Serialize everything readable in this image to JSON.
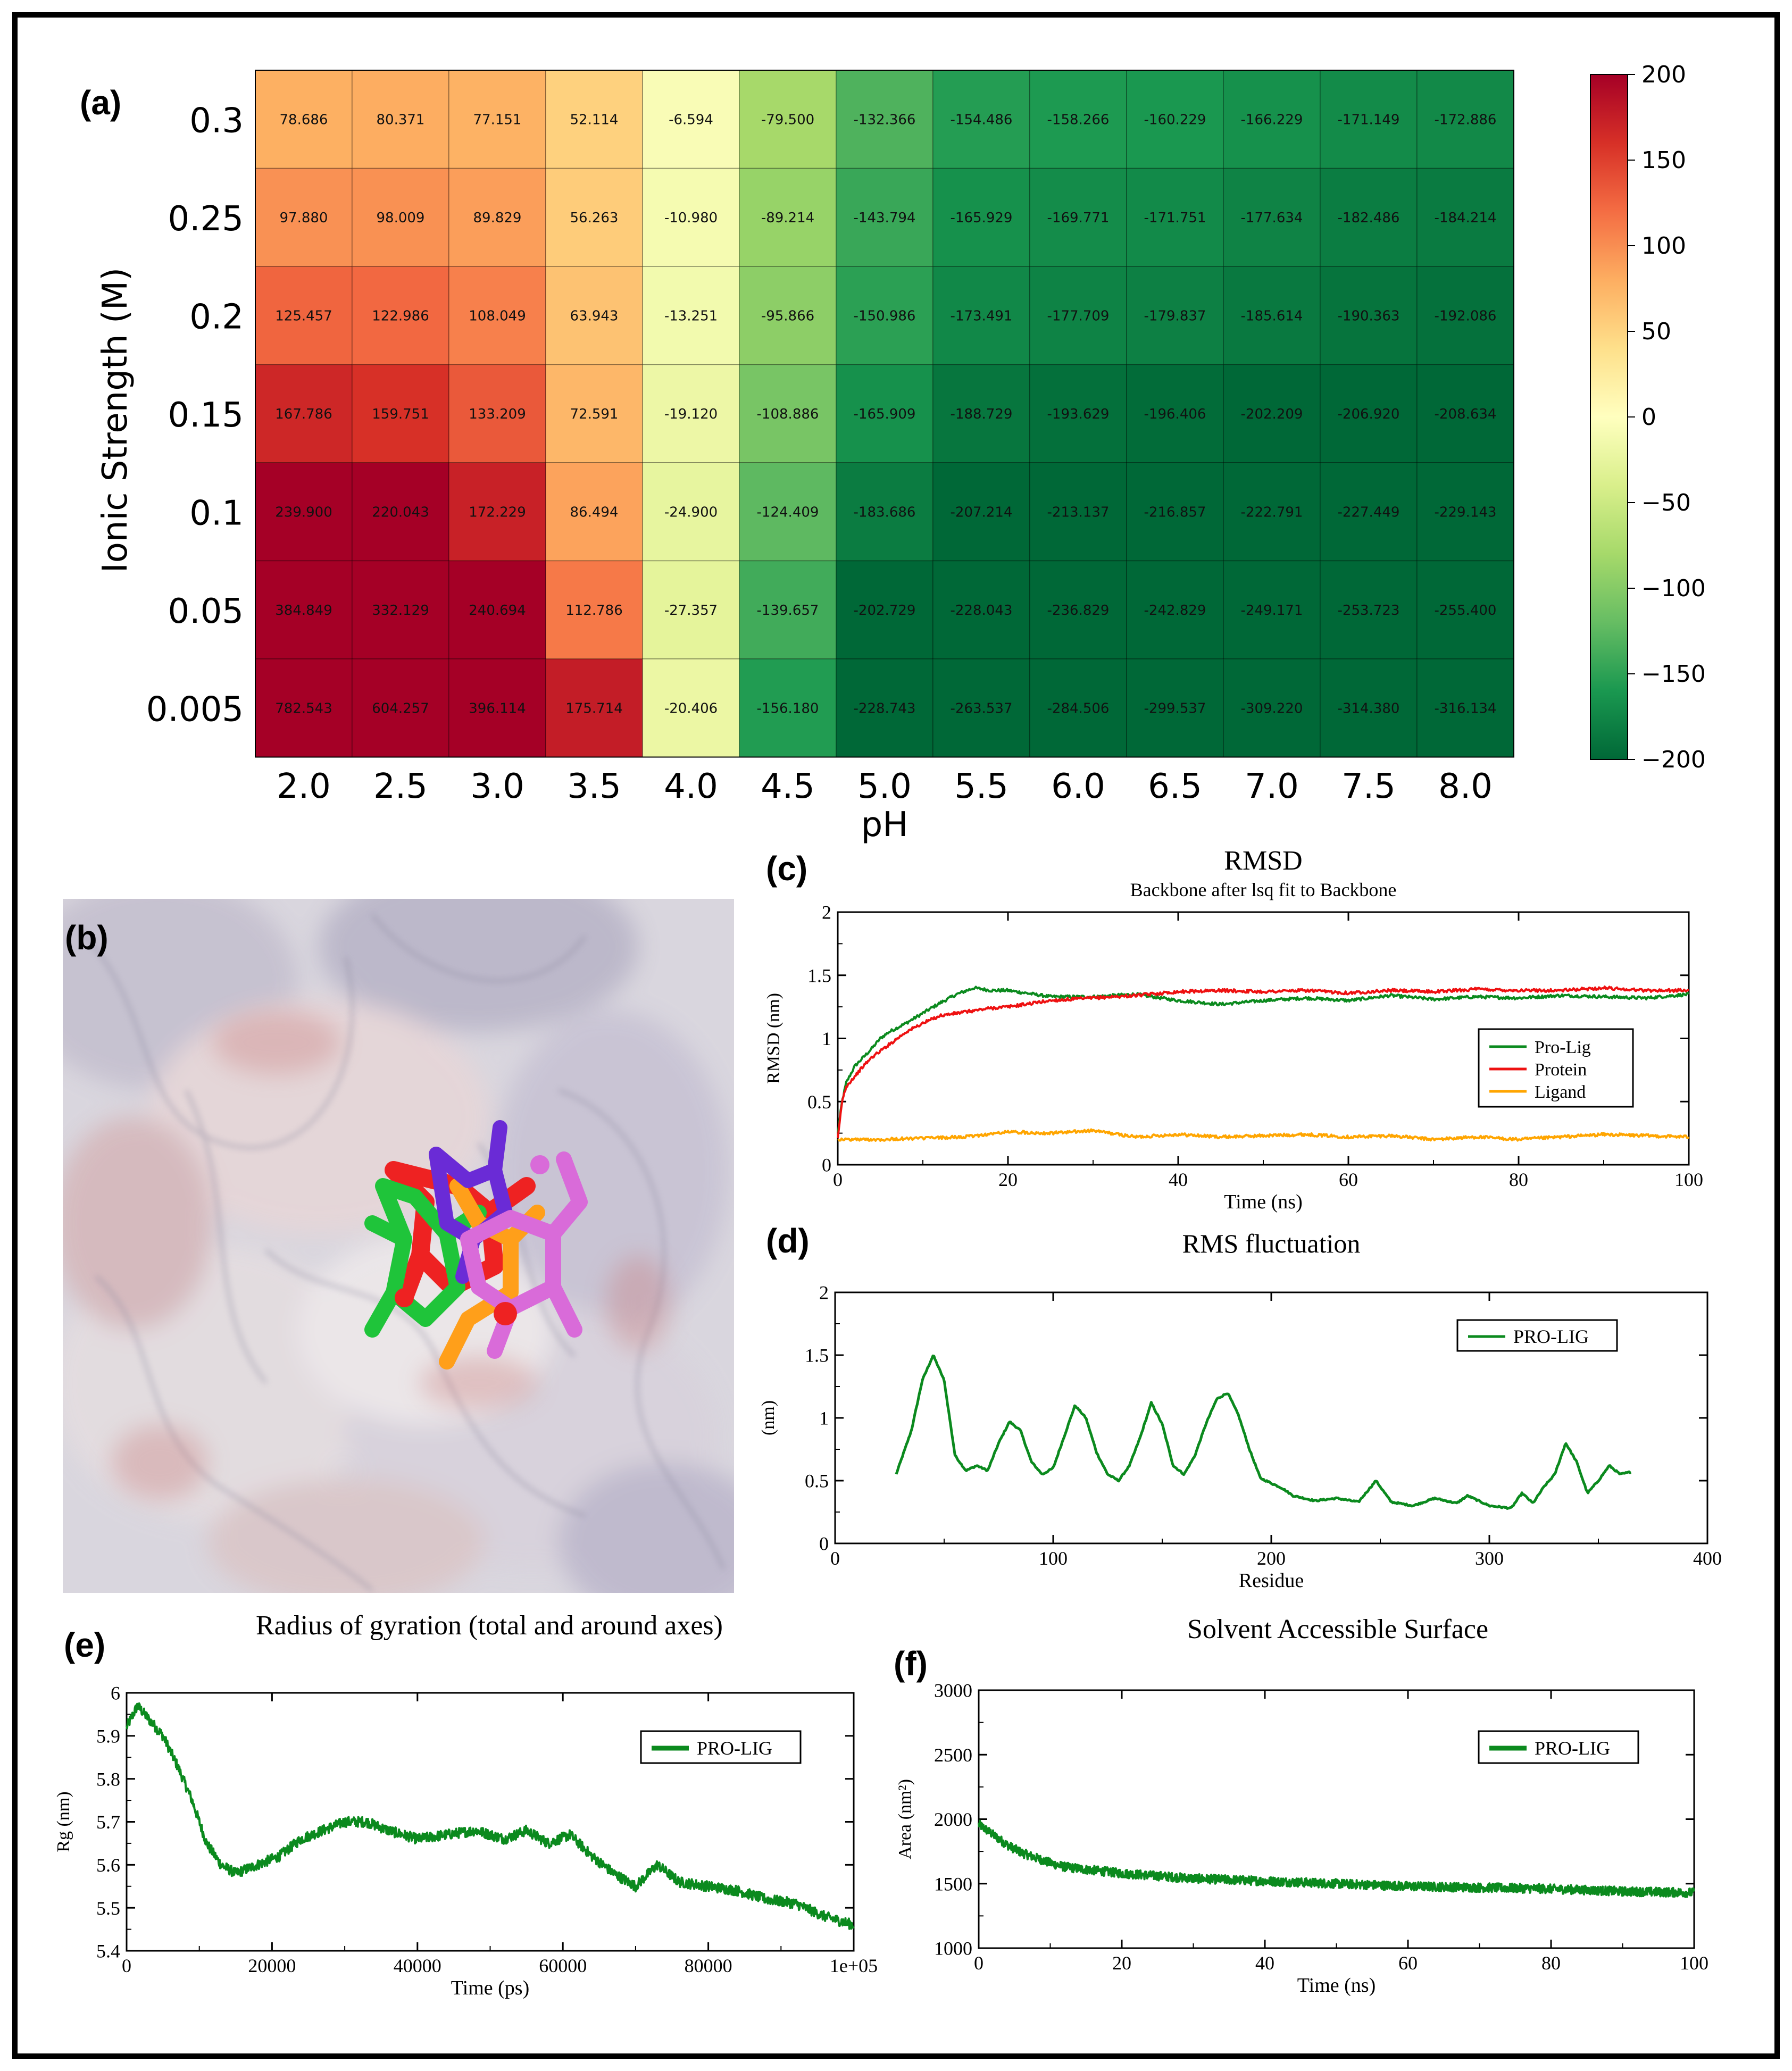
{
  "panel_labels": {
    "a": "(a)",
    "b": "(b)",
    "c": "(c)",
    "d": "(d)",
    "e": "(e)",
    "f": "(f)"
  },
  "chart_data": [
    {
      "id": "a",
      "type": "heatmap",
      "title": "",
      "xlabel": "pH",
      "ylabel": "Ionic Strength (M)",
      "x_categories": [
        "2.0",
        "2.5",
        "3.0",
        "3.5",
        "4.0",
        "4.5",
        "5.0",
        "5.5",
        "6.0",
        "6.5",
        "7.0",
        "7.5",
        "8.0"
      ],
      "y_categories": [
        "0.3",
        "0.25",
        "0.2",
        "0.15",
        "0.1",
        "0.05",
        "0.005"
      ],
      "values": [
        [
          "78.686",
          "80.371",
          "77.151",
          "52.114",
          "-6.594",
          "-79.500",
          "-132.366",
          "-154.486",
          "-158.266",
          "-160.229",
          "-166.229",
          "-171.149",
          "-172.886"
        ],
        [
          "97.880",
          "98.009",
          "89.829",
          "56.263",
          "-10.980",
          "-89.214",
          "-143.794",
          "-165.929",
          "-169.771",
          "-171.751",
          "-177.634",
          "-182.486",
          "-184.214"
        ],
        [
          "125.457",
          "122.986",
          "108.049",
          "63.943",
          "-13.251",
          "-95.866",
          "-150.986",
          "-173.491",
          "-177.709",
          "-179.837",
          "-185.614",
          "-190.363",
          "-192.086"
        ],
        [
          "167.786",
          "159.751",
          "133.209",
          "72.591",
          "-19.120",
          "-108.886",
          "-165.909",
          "-188.729",
          "-193.629",
          "-196.406",
          "-202.209",
          "-206.920",
          "-208.634"
        ],
        [
          "239.900",
          "220.043",
          "172.229",
          "86.494",
          "-24.900",
          "-124.409",
          "-183.686",
          "-207.214",
          "-213.137",
          "-216.857",
          "-222.791",
          "-227.449",
          "-229.143"
        ],
        [
          "384.849",
          "332.129",
          "240.694",
          "112.786",
          "-27.357",
          "-139.657",
          "-202.729",
          "-228.043",
          "-236.829",
          "-242.829",
          "-249.171",
          "-253.723",
          "-255.400"
        ],
        [
          "782.543",
          "604.257",
          "396.114",
          "175.714",
          "-20.406",
          "-156.180",
          "-228.743",
          "-263.537",
          "-284.506",
          "-299.537",
          "-309.220",
          "-314.380",
          "-316.134"
        ]
      ],
      "colorbar": {
        "range": [
          -200,
          200
        ],
        "ticks": [
          "200",
          "150",
          "100",
          "50",
          "0",
          "−50",
          "−100",
          "−150",
          "−200"
        ],
        "tick_values": [
          200,
          150,
          100,
          50,
          0,
          -50,
          -100,
          -150,
          -200
        ],
        "colors": [
          "#006837",
          "#1a9850",
          "#66bd63",
          "#a6d96a",
          "#d9ef8b",
          "#ffffbf",
          "#fee08b",
          "#fdae61",
          "#f46d43",
          "#d73027",
          "#a50026"
        ]
      }
    },
    {
      "id": "c",
      "type": "line",
      "title": "RMSD",
      "subtitle": "Backbone after lsq fit to Backbone",
      "xlabel": "Time (ns)",
      "ylabel": "RMSD (nm)",
      "xlim": [
        0,
        100
      ],
      "ylim": [
        0,
        2
      ],
      "xticks": [
        "0",
        "20",
        "40",
        "60",
        "80",
        "100"
      ],
      "yticks": [
        "0",
        "0.5",
        "1",
        "1.5",
        "2"
      ],
      "legend": "right",
      "series": [
        {
          "name": "Pro-Lig",
          "color": "#0b8a1e",
          "x": [
            0,
            0.5,
            1,
            2,
            3,
            4,
            5,
            6,
            8,
            10,
            12,
            14,
            16,
            18,
            20,
            22,
            25,
            30,
            35,
            40,
            45,
            50,
            55,
            60,
            65,
            70,
            75,
            80,
            85,
            90,
            95,
            100
          ],
          "y": [
            0.25,
            0.5,
            0.65,
            0.78,
            0.85,
            0.92,
            1.0,
            1.05,
            1.12,
            1.2,
            1.28,
            1.35,
            1.4,
            1.38,
            1.38,
            1.36,
            1.33,
            1.33,
            1.35,
            1.3,
            1.27,
            1.3,
            1.32,
            1.3,
            1.34,
            1.31,
            1.33,
            1.32,
            1.34,
            1.33,
            1.32,
            1.35
          ]
        },
        {
          "name": "Protein",
          "color": "#ee1111",
          "x": [
            0,
            0.5,
            1,
            2,
            3,
            4,
            5,
            6,
            8,
            10,
            12,
            14,
            16,
            18,
            20,
            22,
            25,
            30,
            35,
            40,
            45,
            50,
            55,
            60,
            65,
            70,
            75,
            80,
            85,
            90,
            95,
            100
          ],
          "y": [
            0.2,
            0.5,
            0.62,
            0.7,
            0.78,
            0.85,
            0.9,
            0.95,
            1.05,
            1.12,
            1.18,
            1.2,
            1.22,
            1.24,
            1.25,
            1.27,
            1.3,
            1.32,
            1.34,
            1.37,
            1.38,
            1.37,
            1.38,
            1.36,
            1.38,
            1.37,
            1.39,
            1.38,
            1.38,
            1.4,
            1.38,
            1.38
          ]
        },
        {
          "name": "Ligand",
          "color": "#ffa500",
          "x": [
            0,
            5,
            10,
            15,
            20,
            25,
            30,
            35,
            40,
            45,
            50,
            55,
            60,
            65,
            70,
            75,
            80,
            85,
            90,
            95,
            100
          ],
          "y": [
            0.2,
            0.2,
            0.21,
            0.22,
            0.26,
            0.25,
            0.27,
            0.22,
            0.24,
            0.22,
            0.23,
            0.24,
            0.22,
            0.23,
            0.2,
            0.22,
            0.2,
            0.22,
            0.24,
            0.23,
            0.22
          ]
        }
      ]
    },
    {
      "id": "d",
      "type": "line",
      "title": "RMS fluctuation",
      "xlabel": "Residue",
      "ylabel": "(nm)",
      "xlim": [
        0,
        400
      ],
      "ylim": [
        0,
        2
      ],
      "xticks": [
        "0",
        "100",
        "200",
        "300",
        "400"
      ],
      "yticks": [
        "0",
        "0.5",
        "1",
        "1.5",
        "2"
      ],
      "legend": "top-right",
      "series": [
        {
          "name": "PRO-LIG",
          "color": "#0b8a1e",
          "x": [
            28,
            35,
            40,
            45,
            50,
            55,
            60,
            65,
            70,
            75,
            80,
            85,
            90,
            95,
            100,
            105,
            110,
            115,
            120,
            125,
            130,
            135,
            140,
            145,
            150,
            155,
            160,
            165,
            170,
            175,
            180,
            185,
            190,
            195,
            200,
            205,
            210,
            220,
            230,
            240,
            248,
            255,
            265,
            275,
            285,
            290,
            300,
            310,
            315,
            320,
            325,
            330,
            335,
            340,
            345,
            350,
            355,
            360,
            365
          ],
          "y": [
            0.55,
            0.9,
            1.3,
            1.5,
            1.3,
            0.7,
            0.58,
            0.62,
            0.58,
            0.8,
            0.97,
            0.9,
            0.65,
            0.55,
            0.6,
            0.85,
            1.1,
            1.0,
            0.72,
            0.55,
            0.5,
            0.62,
            0.85,
            1.12,
            0.95,
            0.62,
            0.55,
            0.7,
            0.95,
            1.15,
            1.2,
            1.02,
            0.75,
            0.52,
            0.48,
            0.44,
            0.38,
            0.34,
            0.36,
            0.33,
            0.5,
            0.33,
            0.3,
            0.36,
            0.32,
            0.38,
            0.3,
            0.28,
            0.4,
            0.32,
            0.45,
            0.55,
            0.8,
            0.65,
            0.4,
            0.5,
            0.62,
            0.55,
            0.57
          ]
        }
      ]
    },
    {
      "id": "e",
      "type": "line",
      "title": "Radius of gyration (total and around axes)",
      "xlabel": "Time (ps)",
      "ylabel": "Rg (nm)",
      "xlim": [
        0,
        100000
      ],
      "ylim": [
        5.4,
        6.0
      ],
      "xticks": [
        "0",
        "20000",
        "40000",
        "60000",
        "80000",
        "1e+05"
      ],
      "yticks": [
        "5.4",
        "5.5",
        "5.6",
        "5.7",
        "5.8",
        "5.9",
        "6"
      ],
      "legend": "top-right",
      "series": [
        {
          "name": "PRO-LIG",
          "color": "#0b8a1e",
          "x": [
            0,
            1500,
            3000,
            5000,
            7000,
            9000,
            11000,
            13000,
            15000,
            18000,
            21000,
            24000,
            27000,
            30000,
            33000,
            36000,
            40000,
            44000,
            48000,
            52000,
            55000,
            58000,
            61000,
            64000,
            67000,
            70000,
            73000,
            76000,
            80000,
            84000,
            88000,
            92000,
            96000,
            100000
          ],
          "y": [
            5.92,
            5.97,
            5.94,
            5.9,
            5.83,
            5.75,
            5.65,
            5.6,
            5.58,
            5.6,
            5.62,
            5.66,
            5.68,
            5.7,
            5.7,
            5.68,
            5.66,
            5.67,
            5.68,
            5.66,
            5.68,
            5.65,
            5.67,
            5.62,
            5.58,
            5.55,
            5.6,
            5.56,
            5.55,
            5.54,
            5.52,
            5.51,
            5.48,
            5.46
          ]
        }
      ]
    },
    {
      "id": "f",
      "type": "line",
      "title": "Solvent Accessible Surface",
      "xlabel": "Time (ns)",
      "ylabel": "Area (nm²)",
      "xlim": [
        0,
        100
      ],
      "ylim": [
        1000,
        3000
      ],
      "xticks": [
        "0",
        "20",
        "40",
        "60",
        "80",
        "100"
      ],
      "yticks": [
        "1000",
        "1500",
        "2000",
        "2500",
        "3000"
      ],
      "legend": "top-right",
      "series": [
        {
          "name": "PRO-LIG",
          "color": "#0b8a1e",
          "x": [
            0,
            2,
            4,
            6,
            8,
            10,
            12,
            15,
            20,
            25,
            30,
            35,
            40,
            45,
            50,
            60,
            70,
            80,
            90,
            100
          ],
          "y": [
            1960,
            1880,
            1800,
            1740,
            1700,
            1660,
            1630,
            1610,
            1580,
            1560,
            1540,
            1530,
            1520,
            1510,
            1500,
            1480,
            1470,
            1460,
            1440,
            1430
          ]
        }
      ]
    }
  ]
}
